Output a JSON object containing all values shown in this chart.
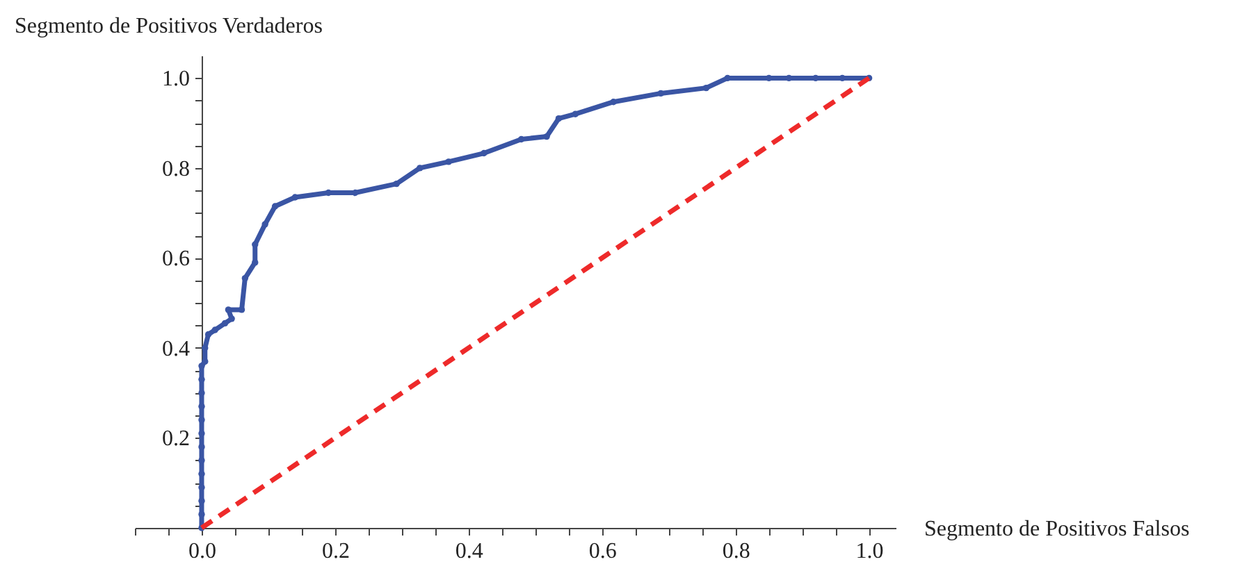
{
  "chart_data": {
    "type": "line",
    "xlabel": "Segmento de Positivos Falsos",
    "ylabel": "Segmento de Positivos Verdaderos",
    "xlim": [
      -0.1,
      1.04
    ],
    "ylim": [
      0,
      1.05
    ],
    "xticks": [
      {
        "value": -0.1,
        "label": null
      },
      {
        "value": -0.05,
        "label": null
      },
      {
        "value": 0,
        "label": "0.0"
      },
      {
        "value": 0.05,
        "label": null
      },
      {
        "value": 0.1,
        "label": null
      },
      {
        "value": 0.15,
        "label": null
      },
      0.2,
      {
        "value": 0.25,
        "label": null
      },
      {
        "value": 0.3,
        "label": null
      },
      {
        "value": 0.35,
        "label": null
      },
      0.4,
      {
        "value": 0.45,
        "label": null
      },
      {
        "value": 0.5,
        "label": null
      },
      {
        "value": 0.55,
        "label": null
      },
      0.6,
      {
        "value": 0.65,
        "label": null
      },
      {
        "value": 0.7,
        "label": null
      },
      {
        "value": 0.75,
        "label": null
      },
      0.8,
      {
        "value": 0.85,
        "label": null
      },
      {
        "value": 0.9,
        "label": null
      },
      {
        "value": 0.95,
        "label": null
      },
      {
        "value": 1,
        "label": "1.0"
      }
    ],
    "yticks": [
      {
        "value": 0.05,
        "label": null
      },
      {
        "value": 0.1,
        "label": null
      },
      {
        "value": 0.15,
        "label": null
      },
      0.2,
      {
        "value": 0.25,
        "label": null
      },
      {
        "value": 0.3,
        "label": null
      },
      {
        "value": 0.35,
        "label": null
      },
      0.4,
      {
        "value": 0.45,
        "label": null
      },
      {
        "value": 0.5,
        "label": null
      },
      {
        "value": 0.55,
        "label": null
      },
      0.6,
      {
        "value": 0.65,
        "label": null
      },
      {
        "value": 0.7,
        "label": null
      },
      {
        "value": 0.75,
        "label": null
      },
      0.8,
      {
        "value": 0.85,
        "label": null
      },
      {
        "value": 0.9,
        "label": null
      },
      {
        "value": 0.95,
        "label": null
      },
      {
        "value": 1,
        "label": "1.0"
      }
    ],
    "grid": false,
    "series": [
      {
        "color": "#3a55a4",
        "marker": "circle",
        "line_style": "solid",
        "x": [
          0,
          0,
          0,
          0,
          0,
          0,
          0,
          0,
          0,
          0,
          0,
          0,
          0,
          0.005,
          0.005,
          0.01,
          0.02,
          0.035,
          0.045,
          0.04,
          0.06,
          0.065,
          0.08,
          0.08,
          0.095,
          0.11,
          0.14,
          0.19,
          0.23,
          0.292,
          0.327,
          0.37,
          0.423,
          0.479,
          0.517,
          0.535,
          0.56,
          0.617,
          0.688,
          0.756,
          0.788,
          0.85,
          0.88,
          0.92,
          0.96,
          1.0
        ],
        "values": [
          0,
          0.03,
          0.06,
          0.09,
          0.12,
          0.15,
          0.18,
          0.21,
          0.24,
          0.27,
          0.3,
          0.33,
          0.36,
          0.37,
          0.4,
          0.43,
          0.44,
          0.455,
          0.465,
          0.485,
          0.485,
          0.555,
          0.59,
          0.63,
          0.675,
          0.715,
          0.735,
          0.745,
          0.745,
          0.765,
          0.8,
          0.814,
          0.833,
          0.864,
          0.87,
          0.91,
          0.92,
          0.947,
          0.966,
          0.978,
          1.0,
          1.0,
          1.0,
          1.0,
          1.0,
          1.0
        ]
      },
      {
        "color": "#ee2a2a",
        "marker": "none",
        "line_style": "dashed",
        "x": [
          0,
          1
        ],
        "values": [
          0,
          1
        ]
      }
    ]
  }
}
